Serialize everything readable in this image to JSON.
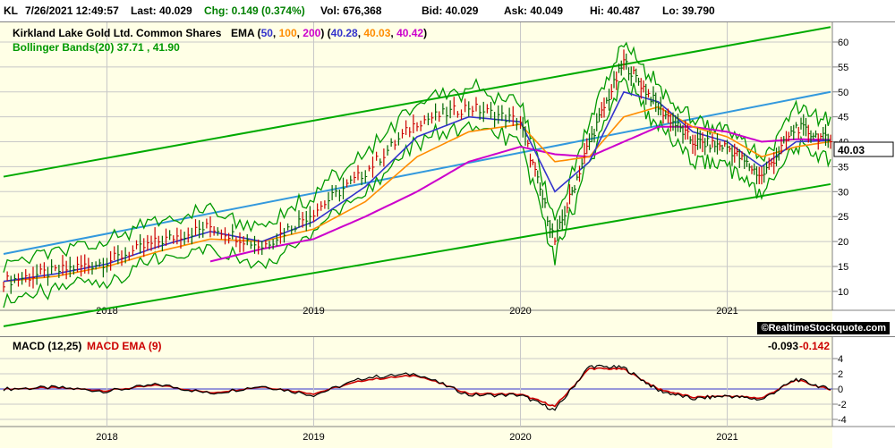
{
  "quote": {
    "symbol": "KL",
    "datetime": "7/26/2021 12:49:57",
    "last": "Last: 40.029",
    "chg": "Chg: 0.149 (0.374%)",
    "vol": "Vol: 676,368",
    "bid": "Bid: 40.029",
    "ask": "Ask: 40.049",
    "hi": "Hi: 40.487",
    "lo": "Lo: 39.790"
  },
  "price_panel": {
    "company": "Kirkland Lake Gold Ltd. Common Shares",
    "ema_label": "EMA (",
    "ema_p1": "50",
    "ema_p2": "100",
    "ema_p3": "200",
    "ema_v1": "40.28",
    "ema_v2": "40.03",
    "ema_v3": "40.42",
    "bb_label": "Bollinger Bands(20) 37.71 , 41.90",
    "last_price_tag": "40.03",
    "credit": "©RealtimeStockquote.com"
  },
  "macd_panel": {
    "label": "MACD (12,25)",
    "ema_label": "MACD EMA (9)",
    "value": "-0.093",
    "ema_value": "-0.142"
  },
  "colors": {
    "price": "#000000",
    "ema50": "#3333cc",
    "ema100": "#ff8c00",
    "ema200": "#cc00cc",
    "bollinger": "#009900",
    "trend_channel": "#00aa00",
    "trend_mid": "#3399dd",
    "macd": "#000000",
    "macd_ema": "#cc0000",
    "zero_line": "#3333cc"
  },
  "chart_data": [
    {
      "type": "line",
      "title": "Kirkland Lake Gold Ltd. Common Shares",
      "x_tick_labels": [
        "2018",
        "2019",
        "2020",
        "2021"
      ],
      "y_ticks": [
        10,
        15,
        20,
        25,
        30,
        35,
        40,
        45,
        50,
        55,
        60
      ],
      "ylim": [
        8,
        60
      ],
      "xlim": [
        "2017-07",
        "2021-07"
      ],
      "grid": true,
      "x": [
        "2017-07",
        "2017-10",
        "2018-01",
        "2018-04",
        "2018-07",
        "2018-10",
        "2019-01",
        "2019-04",
        "2019-07",
        "2019-10",
        "2020-01",
        "2020-03",
        "2020-05",
        "2020-07",
        "2020-09",
        "2020-11",
        "2021-01",
        "2021-03",
        "2021-05",
        "2021-07"
      ],
      "series": [
        {
          "name": "Price",
          "values": [
            12,
            14,
            16,
            20,
            23,
            19,
            26,
            34,
            44,
            47,
            44,
            20,
            40,
            56,
            47,
            40,
            39,
            33,
            43,
            40
          ]
        },
        {
          "name": "EMA 50",
          "values": [
            12,
            13.5,
            15.5,
            19,
            22,
            20,
            24,
            31,
            41,
            45,
            44,
            30,
            36,
            50,
            48,
            42,
            40,
            35,
            40,
            40.28
          ]
        },
        {
          "name": "EMA 100",
          "values": [
            12,
            13,
            15,
            18,
            20.5,
            20,
            22.5,
            28,
            37,
            42,
            43.5,
            36,
            37,
            45,
            47,
            43,
            41,
            37,
            39,
            40.03
          ]
        },
        {
          "name": "EMA 200",
          "values": [
            null,
            null,
            null,
            null,
            16,
            18.5,
            20.5,
            25,
            30,
            36,
            39,
            37.5,
            37,
            40,
            43,
            43,
            42,
            40,
            40.5,
            40.42
          ]
        }
      ],
      "channel": {
        "upper": [
          33,
          63
        ],
        "middle": [
          17.5,
          50
        ],
        "lower": [
          3,
          31.5
        ],
        "x": [
          "2017-07",
          "2021-07"
        ]
      }
    },
    {
      "type": "line",
      "title": "MACD (12,25)",
      "x_tick_labels": [
        "2018",
        "2019",
        "2020",
        "2021"
      ],
      "y_ticks": [
        4,
        2,
        0,
        -2,
        -4
      ],
      "ylim": [
        -4,
        4
      ],
      "x": [
        "2017-07",
        "2017-10",
        "2018-01",
        "2018-04",
        "2018-07",
        "2018-10",
        "2019-01",
        "2019-04",
        "2019-07",
        "2019-10",
        "2020-01",
        "2020-03",
        "2020-05",
        "2020-07",
        "2020-09",
        "2020-11",
        "2021-01",
        "2021-03",
        "2021-05",
        "2021-07"
      ],
      "series": [
        {
          "name": "MACD",
          "values": [
            0,
            0.2,
            -0.3,
            0.6,
            -0.6,
            0.4,
            -0.8,
            1.5,
            2.0,
            -0.8,
            -0.8,
            -2.8,
            3.0,
            2.8,
            -0.2,
            -1.3,
            -0.9,
            -1.4,
            1.3,
            -0.093
          ]
        },
        {
          "name": "MACD EMA",
          "values": [
            0,
            0.15,
            -0.2,
            0.5,
            -0.5,
            0.3,
            -0.6,
            1.2,
            1.8,
            -0.6,
            -0.7,
            -2.3,
            2.7,
            2.6,
            0,
            -1.1,
            -0.9,
            -1.2,
            1.2,
            -0.142
          ]
        }
      ]
    }
  ]
}
